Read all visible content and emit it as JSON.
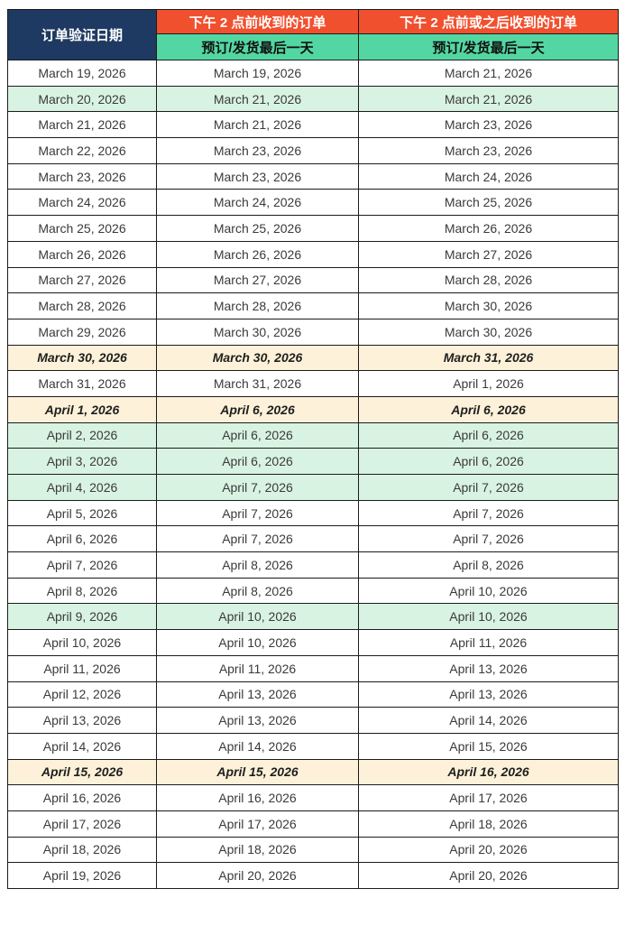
{
  "table": {
    "columns": {
      "verification": {
        "label": "订单验证日期"
      },
      "before2pm": {
        "label": "下午 2 点前收到的订单",
        "sublabel": "预订/发货最后一天"
      },
      "after2pm": {
        "label": "下午 2 点前或之后收到的订单",
        "sublabel": "预订/发货最后一天"
      }
    },
    "rows": [
      {
        "verification": "March 19, 2026",
        "before2pm": "March 19, 2026",
        "after2pm": "March 21, 2026",
        "highlight": "none"
      },
      {
        "verification": "March 20, 2026",
        "before2pm": "March 21, 2026",
        "after2pm": "March 21, 2026",
        "highlight": "green"
      },
      {
        "verification": "March 21, 2026",
        "before2pm": "March 21, 2026",
        "after2pm": "March 23, 2026",
        "highlight": "none"
      },
      {
        "verification": "March 22, 2026",
        "before2pm": "March 23, 2026",
        "after2pm": "March 23, 2026",
        "highlight": "none"
      },
      {
        "verification": "March 23, 2026",
        "before2pm": "March 23, 2026",
        "after2pm": "March 24, 2026",
        "highlight": "none"
      },
      {
        "verification": "March 24, 2026",
        "before2pm": "March 24, 2026",
        "after2pm": "March 25, 2026",
        "highlight": "none"
      },
      {
        "verification": "March 25, 2026",
        "before2pm": "March 25, 2026",
        "after2pm": "March 26, 2026",
        "highlight": "none"
      },
      {
        "verification": "March 26, 2026",
        "before2pm": "March 26, 2026",
        "after2pm": "March 27, 2026",
        "highlight": "none"
      },
      {
        "verification": "March 27, 2026",
        "before2pm": "March 27, 2026",
        "after2pm": "March 28, 2026",
        "highlight": "none"
      },
      {
        "verification": "March 28, 2026",
        "before2pm": "March 28, 2026",
        "after2pm": "March 30, 2026",
        "highlight": "none"
      },
      {
        "verification": "March 29, 2026",
        "before2pm": "March 30, 2026",
        "after2pm": "March 30, 2026",
        "highlight": "none"
      },
      {
        "verification": "March 30, 2026",
        "before2pm": "March 30, 2026",
        "after2pm": "March 31, 2026",
        "highlight": "cream"
      },
      {
        "verification": "March 31, 2026",
        "before2pm": "March 31, 2026",
        "after2pm": "April 1, 2026",
        "highlight": "none"
      },
      {
        "verification": "April 1, 2026",
        "before2pm": "April 6, 2026",
        "after2pm": "April 6, 2026",
        "highlight": "cream"
      },
      {
        "verification": "April 2, 2026",
        "before2pm": "April 6, 2026",
        "after2pm": "April 6, 2026",
        "highlight": "green"
      },
      {
        "verification": "April 3, 2026",
        "before2pm": "April 6, 2026",
        "after2pm": "April 6, 2026",
        "highlight": "green"
      },
      {
        "verification": "April 4, 2026",
        "before2pm": "April 7, 2026",
        "after2pm": "April 7, 2026",
        "highlight": "green"
      },
      {
        "verification": "April 5, 2026",
        "before2pm": "April 7, 2026",
        "after2pm": "April 7, 2026",
        "highlight": "none"
      },
      {
        "verification": "April 6, 2026",
        "before2pm": "April 7, 2026",
        "after2pm": "April 7, 2026",
        "highlight": "none"
      },
      {
        "verification": "April 7, 2026",
        "before2pm": "April 8, 2026",
        "after2pm": "April 8, 2026",
        "highlight": "none"
      },
      {
        "verification": "April 8, 2026",
        "before2pm": "April 8, 2026",
        "after2pm": "April 10, 2026",
        "highlight": "none"
      },
      {
        "verification": "April 9, 2026",
        "before2pm": "April 10, 2026",
        "after2pm": "April 10, 2026",
        "highlight": "green"
      },
      {
        "verification": "April 10, 2026",
        "before2pm": "April 10, 2026",
        "after2pm": "April 11, 2026",
        "highlight": "none"
      },
      {
        "verification": "April 11, 2026",
        "before2pm": "April 11, 2026",
        "after2pm": "April 13, 2026",
        "highlight": "none"
      },
      {
        "verification": "April 12, 2026",
        "before2pm": "April 13, 2026",
        "after2pm": "April 13, 2026",
        "highlight": "none"
      },
      {
        "verification": "April 13, 2026",
        "before2pm": "April 13, 2026",
        "after2pm": "April 14, 2026",
        "highlight": "none"
      },
      {
        "verification": "April 14, 2026",
        "before2pm": "April 14, 2026",
        "after2pm": "April 15, 2026",
        "highlight": "none"
      },
      {
        "verification": "April 15, 2026",
        "before2pm": "April 15, 2026",
        "after2pm": "April 16, 2026",
        "highlight": "cream"
      },
      {
        "verification": "April 16, 2026",
        "before2pm": "April 16, 2026",
        "after2pm": "April 17, 2026",
        "highlight": "none"
      },
      {
        "verification": "April 17, 2026",
        "before2pm": "April 17, 2026",
        "after2pm": "April 18, 2026",
        "highlight": "none"
      },
      {
        "verification": "April 18, 2026",
        "before2pm": "April 18, 2026",
        "after2pm": "April 20, 2026",
        "highlight": "none"
      },
      {
        "verification": "April 19, 2026",
        "before2pm": "April 20, 2026",
        "after2pm": "April 20, 2026",
        "highlight": "none"
      }
    ]
  },
  "colors": {
    "header_navy": "#1e3a62",
    "header_orange": "#f1502f",
    "header_green": "#53d7a2",
    "row_highlight_green": "#d9f3e2",
    "row_highlight_cream": "#fdf2d9",
    "border": "#1b1b1b",
    "body_text": "#3a3a3a"
  }
}
